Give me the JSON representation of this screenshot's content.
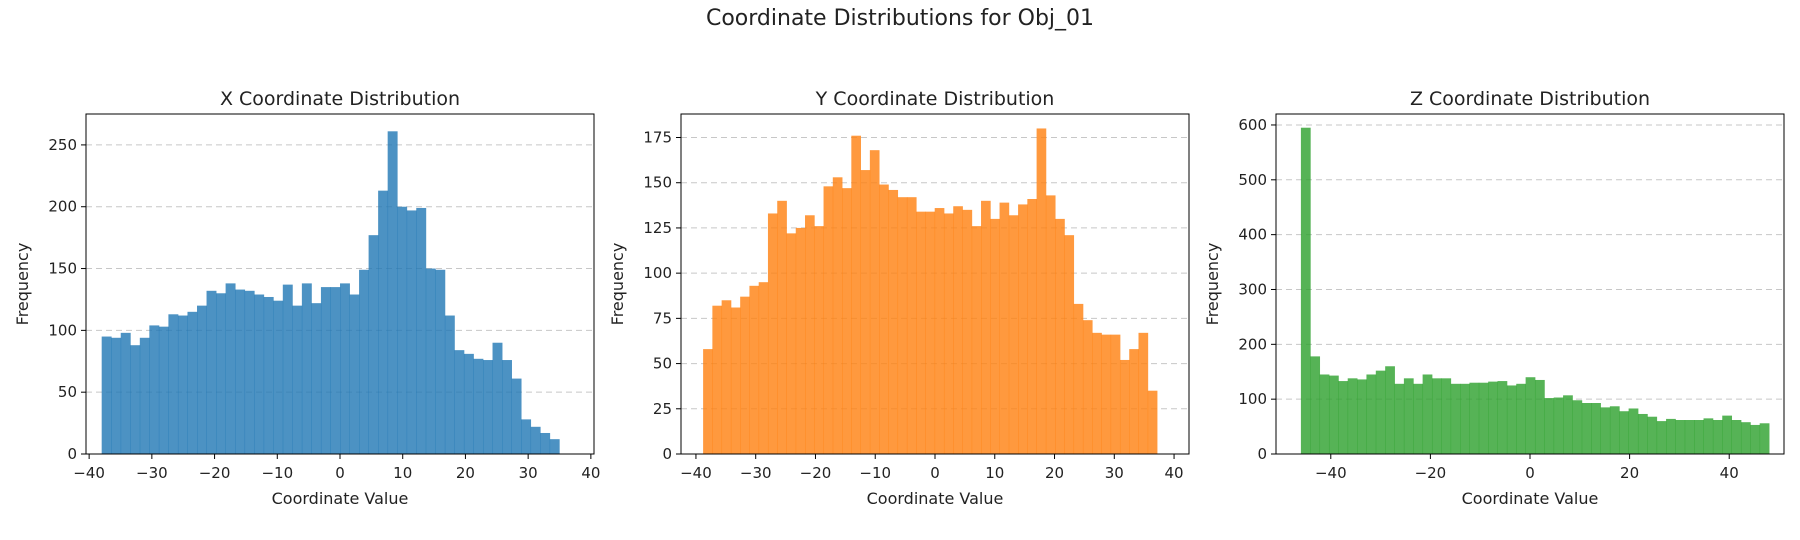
{
  "figure_title": "Coordinate Distributions for Obj_01",
  "chart_data": [
    {
      "type": "bar",
      "title": "X Coordinate Distribution",
      "xlabel": "Coordinate Value",
      "ylabel": "Frequency",
      "color": "#1f77b4",
      "xlim": [
        -40.5,
        40.5
      ],
      "ylim": [
        0,
        275
      ],
      "xticks": [
        -40,
        -30,
        -20,
        -10,
        0,
        10,
        20,
        30,
        40
      ],
      "yticks": [
        0,
        50,
        100,
        150,
        200,
        250
      ],
      "xtick_labels": [
        "−40",
        "−30",
        "−20",
        "−10",
        "0",
        "10",
        "20",
        "30",
        "40"
      ],
      "ytick_labels": [
        "0",
        "50",
        "100",
        "150",
        "200",
        "250"
      ],
      "grid": "y-dashed",
      "bin_start": -38,
      "bin_width": 1.52,
      "values": [
        95,
        94,
        98,
        88,
        94,
        104,
        103,
        113,
        112,
        115,
        120,
        132,
        130,
        138,
        133,
        132,
        129,
        127,
        124,
        137,
        120,
        138,
        122,
        135,
        135,
        138,
        129,
        149,
        177,
        213,
        261,
        200,
        197,
        199,
        150,
        149,
        112,
        84,
        81,
        77,
        76,
        90,
        76,
        61,
        28,
        22,
        17,
        12
      ]
    },
    {
      "type": "bar",
      "title": "Y Coordinate Distribution",
      "xlabel": "Coordinate Value",
      "ylabel": "Frequency",
      "color": "#ff7f0e",
      "xlim": [
        -42.5,
        42.5
      ],
      "ylim": [
        0,
        188
      ],
      "xticks": [
        -40,
        -30,
        -20,
        -10,
        0,
        10,
        20,
        30,
        40
      ],
      "yticks": [
        0,
        25,
        50,
        75,
        100,
        125,
        150,
        175
      ],
      "xtick_labels": [
        "−40",
        "−30",
        "−20",
        "−10",
        "0",
        "10",
        "20",
        "30",
        "40"
      ],
      "ytick_labels": [
        "0",
        "25",
        "50",
        "75",
        "100",
        "125",
        "150",
        "175"
      ],
      "grid": "y-dashed",
      "bin_start": -38.8,
      "bin_width": 1.55,
      "values": [
        58,
        82,
        85,
        81,
        87,
        93,
        95,
        133,
        140,
        122,
        125,
        132,
        126,
        148,
        153,
        147,
        176,
        157,
        168,
        149,
        146,
        142,
        142,
        134,
        134,
        136,
        133,
        137,
        135,
        126,
        140,
        130,
        139,
        132,
        138,
        141,
        180,
        143,
        130,
        121,
        83,
        74,
        67,
        66,
        66,
        52,
        58,
        67,
        35
      ]
    },
    {
      "type": "bar",
      "title": "Z Coordinate Distribution",
      "xlabel": "Coordinate Value",
      "ylabel": "Frequency",
      "color": "#2ca02c",
      "xlim": [
        -51,
        51
      ],
      "ylim": [
        0,
        620
      ],
      "xticks": [
        -40,
        -20,
        0,
        20,
        40
      ],
      "yticks": [
        0,
        100,
        200,
        300,
        400,
        500,
        600
      ],
      "xtick_labels": [
        "−40",
        "−20",
        "0",
        "20",
        "40"
      ],
      "ytick_labels": [
        "0",
        "100",
        "200",
        "300",
        "400",
        "500",
        "600"
      ],
      "grid": "y-dashed",
      "bin_start": -46,
      "bin_width": 1.88,
      "values": [
        595,
        178,
        145,
        143,
        133,
        138,
        136,
        145,
        152,
        160,
        128,
        138,
        128,
        145,
        138,
        138,
        128,
        128,
        130,
        130,
        132,
        133,
        125,
        128,
        140,
        135,
        102,
        103,
        107,
        98,
        93,
        93,
        85,
        87,
        78,
        83,
        73,
        68,
        60,
        64,
        62,
        62,
        62,
        65,
        62,
        70,
        62,
        58,
        53,
        56
      ]
    }
  ]
}
